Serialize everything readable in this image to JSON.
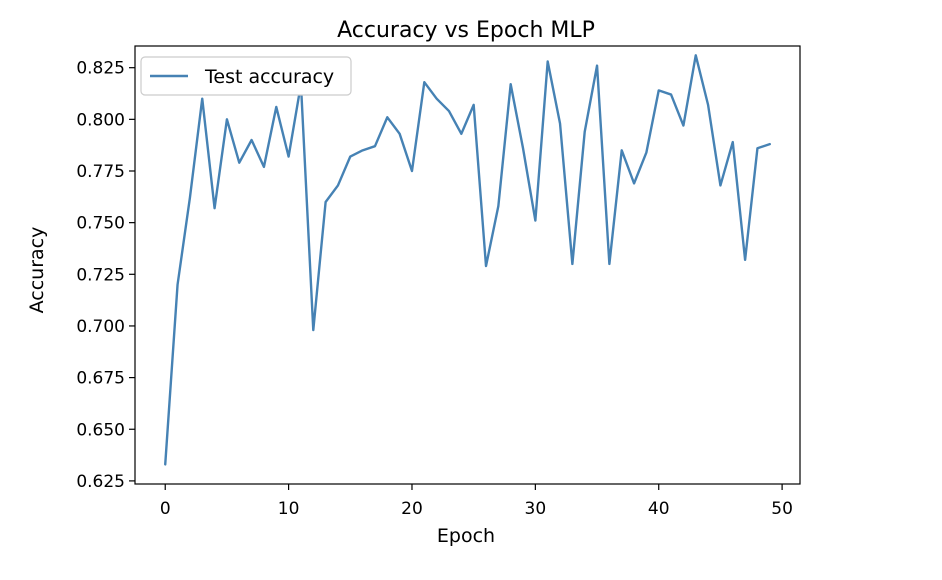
{
  "chart_data": {
    "type": "line",
    "title": "Accuracy vs Epoch MLP",
    "xlabel": "Epoch",
    "ylabel": "Accuracy",
    "xlim": [
      -2.45,
      51.45
    ],
    "ylim": [
      0.6235,
      0.8355
    ],
    "xticks": [
      0,
      10,
      20,
      30,
      40,
      50
    ],
    "xtick_labels": [
      "0",
      "10",
      "20",
      "30",
      "40",
      "50"
    ],
    "yticks": [
      0.625,
      0.65,
      0.675,
      0.7,
      0.725,
      0.75,
      0.775,
      0.8,
      0.825
    ],
    "ytick_labels": [
      "0.625",
      "0.650",
      "0.675",
      "0.700",
      "0.725",
      "0.750",
      "0.775",
      "0.800",
      "0.825"
    ],
    "grid": false,
    "legend_position": "upper left",
    "series": [
      {
        "name": "Test accuracy",
        "color": "#4682b4",
        "x": [
          0,
          1,
          2,
          3,
          4,
          5,
          6,
          7,
          8,
          9,
          10,
          11,
          12,
          13,
          14,
          15,
          16,
          17,
          18,
          19,
          20,
          21,
          22,
          23,
          24,
          25,
          26,
          27,
          28,
          29,
          30,
          31,
          32,
          33,
          34,
          35,
          36,
          37,
          38,
          39,
          40,
          41,
          42,
          43,
          44,
          45,
          46,
          47,
          48,
          49
        ],
        "values": [
          0.633,
          0.72,
          0.762,
          0.81,
          0.757,
          0.8,
          0.779,
          0.79,
          0.777,
          0.806,
          0.782,
          0.817,
          0.698,
          0.76,
          0.768,
          0.782,
          0.785,
          0.787,
          0.801,
          0.793,
          0.775,
          0.818,
          0.81,
          0.804,
          0.793,
          0.807,
          0.729,
          0.758,
          0.817,
          0.786,
          0.751,
          0.828,
          0.798,
          0.73,
          0.794,
          0.826,
          0.73,
          0.785,
          0.769,
          0.784,
          0.814,
          0.812,
          0.797,
          0.831,
          0.807,
          0.768,
          0.789,
          0.732,
          0.786,
          0.788
        ]
      }
    ]
  }
}
